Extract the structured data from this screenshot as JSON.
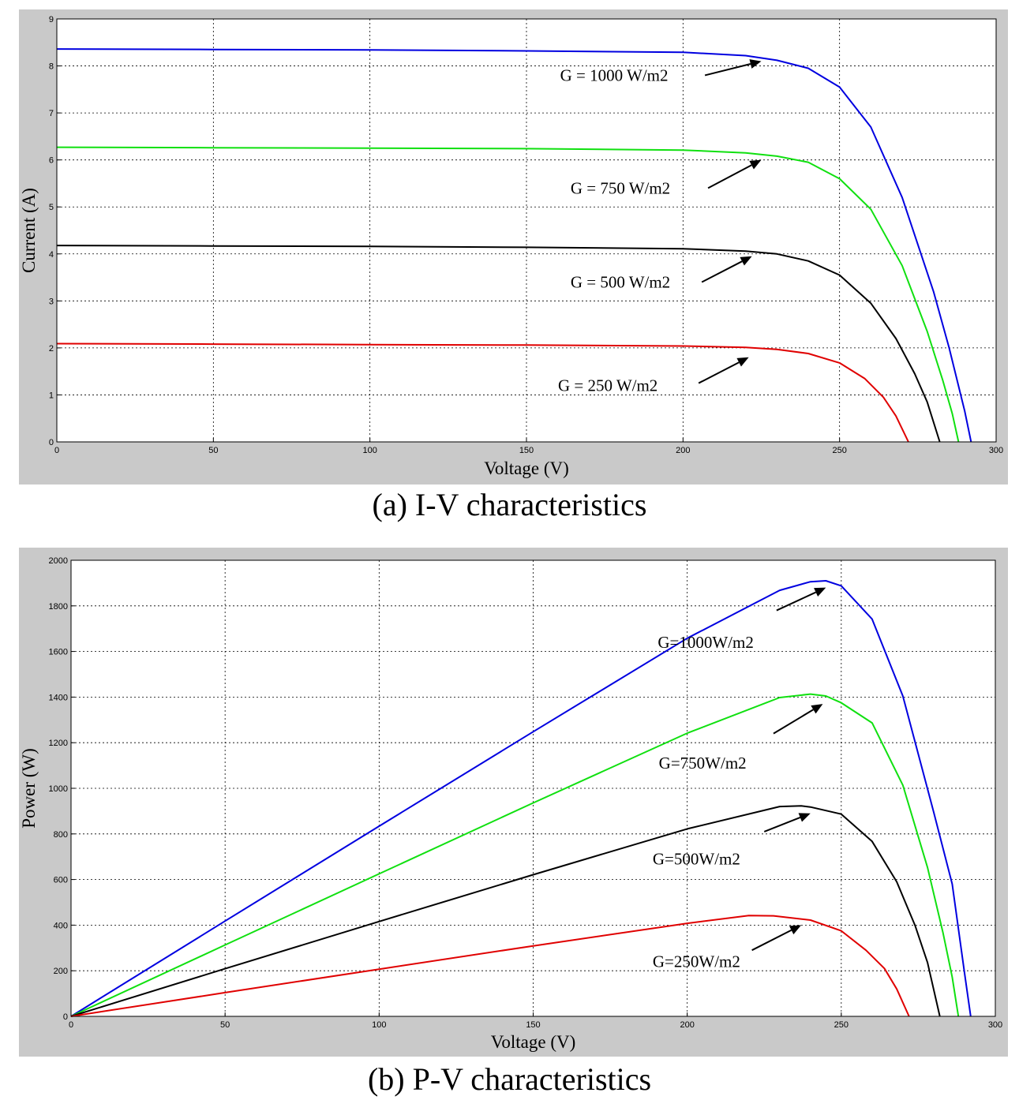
{
  "chart_data": [
    {
      "type": "line",
      "caption": "(a) I-V characteristics",
      "xlabel": "Voltage (V)",
      "ylabel": "Current (A)",
      "xlim": [
        0,
        300
      ],
      "ylim": [
        0,
        9
      ],
      "xticks": [
        0,
        50,
        100,
        150,
        200,
        250,
        300
      ],
      "yticks": [
        0,
        1,
        2,
        3,
        4,
        5,
        6,
        7,
        8,
        9
      ],
      "grid": true,
      "series": [
        {
          "color": "#0000e0",
          "x": [
            0,
            50,
            100,
            150,
            200,
            220,
            230,
            240,
            250,
            260,
            270,
            280,
            285,
            290,
            292
          ],
          "y": [
            8.36,
            8.35,
            8.34,
            8.32,
            8.29,
            8.22,
            8.12,
            7.95,
            7.55,
            6.7,
            5.2,
            3.2,
            2.0,
            0.65,
            0
          ]
        },
        {
          "color": "#10e010",
          "x": [
            0,
            50,
            100,
            150,
            200,
            220,
            230,
            240,
            250,
            260,
            270,
            278,
            283,
            286,
            288
          ],
          "y": [
            6.27,
            6.26,
            6.25,
            6.24,
            6.21,
            6.15,
            6.08,
            5.95,
            5.6,
            4.95,
            3.75,
            2.35,
            1.3,
            0.6,
            0
          ]
        },
        {
          "color": "#000000",
          "x": [
            0,
            50,
            100,
            150,
            200,
            220,
            230,
            240,
            250,
            260,
            268,
            274,
            278,
            282
          ],
          "y": [
            4.18,
            4.17,
            4.16,
            4.14,
            4.11,
            4.06,
            4.0,
            3.85,
            3.55,
            2.95,
            2.2,
            1.45,
            0.85,
            0
          ]
        },
        {
          "color": "#e00000",
          "x": [
            0,
            50,
            100,
            150,
            200,
            220,
            230,
            240,
            250,
            258,
            264,
            268,
            272
          ],
          "y": [
            2.09,
            2.08,
            2.07,
            2.06,
            2.04,
            2.01,
            1.97,
            1.88,
            1.68,
            1.35,
            0.95,
            0.55,
            0
          ]
        }
      ],
      "annotations": [
        {
          "text": "G = 1000 W/m2",
          "x": 178,
          "y": 7.8,
          "arrow_from": [
            207,
            7.8
          ],
          "arrow_to": [
            225,
            8.1
          ]
        },
        {
          "text": "G = 750 W/m2",
          "x": 180,
          "y": 5.4,
          "arrow_from": [
            208,
            5.4
          ],
          "arrow_to": [
            225,
            6.0
          ]
        },
        {
          "text": "G = 500 W/m2",
          "x": 180,
          "y": 3.4,
          "arrow_from": [
            206,
            3.4
          ],
          "arrow_to": [
            222,
            3.95
          ]
        },
        {
          "text": "G = 250 W/m2",
          "x": 176,
          "y": 1.2,
          "arrow_from": [
            205,
            1.25
          ],
          "arrow_to": [
            221,
            1.8
          ]
        }
      ]
    },
    {
      "type": "line",
      "caption": "(b) P-V characteristics",
      "xlabel": "Voltage (V)",
      "ylabel": "Power (W)",
      "xlim": [
        0,
        300
      ],
      "ylim": [
        0,
        2000
      ],
      "xticks": [
        0,
        50,
        100,
        150,
        200,
        250,
        300
      ],
      "yticks": [
        0,
        200,
        400,
        600,
        800,
        1000,
        1200,
        1400,
        1600,
        1800,
        2000
      ],
      "grid": true,
      "series": [
        {
          "color": "#0000e0",
          "x": [
            0,
            50,
            100,
            150,
            200,
            230,
            240,
            245,
            250,
            260,
            270,
            280,
            286,
            290,
            292
          ],
          "y": [
            0,
            418,
            834,
            1248,
            1658,
            1868,
            1906,
            1910,
            1888,
            1742,
            1404,
            896,
            580,
            190,
            0
          ]
        },
        {
          "color": "#10e010",
          "x": [
            0,
            50,
            100,
            150,
            200,
            230,
            240,
            245,
            250,
            260,
            270,
            278,
            283,
            286,
            288
          ],
          "y": [
            0,
            313,
            625,
            936,
            1242,
            1398,
            1413,
            1405,
            1375,
            1287,
            1013,
            653,
            368,
            172,
            0
          ]
        },
        {
          "color": "#000000",
          "x": [
            0,
            50,
            100,
            150,
            200,
            230,
            237,
            240,
            250,
            260,
            268,
            274,
            278,
            282
          ],
          "y": [
            0,
            209,
            416,
            621,
            822,
            920,
            923,
            918,
            887,
            767,
            590,
            397,
            236,
            0
          ]
        },
        {
          "color": "#e00000",
          "x": [
            0,
            50,
            100,
            150,
            200,
            220,
            228,
            240,
            250,
            258,
            264,
            268,
            272
          ],
          "y": [
            0,
            104,
            207,
            309,
            408,
            442,
            441,
            422,
            375,
            290,
            210,
            120,
            0
          ]
        }
      ],
      "annotations": [
        {
          "text": "G=1000W/m2",
          "x": 206,
          "y": 1640,
          "arrow_from": [
            229,
            1780
          ],
          "arrow_to": [
            245,
            1880
          ]
        },
        {
          "text": "G=750W/m2",
          "x": 205,
          "y": 1110,
          "arrow_from": [
            228,
            1240
          ],
          "arrow_to": [
            244,
            1370
          ]
        },
        {
          "text": "G=500W/m2",
          "x": 203,
          "y": 690,
          "arrow_from": [
            225,
            810
          ],
          "arrow_to": [
            240,
            890
          ]
        },
        {
          "text": "G=250W/m2",
          "x": 203,
          "y": 240,
          "arrow_from": [
            221,
            290
          ],
          "arrow_to": [
            237,
            400
          ]
        }
      ]
    }
  ]
}
